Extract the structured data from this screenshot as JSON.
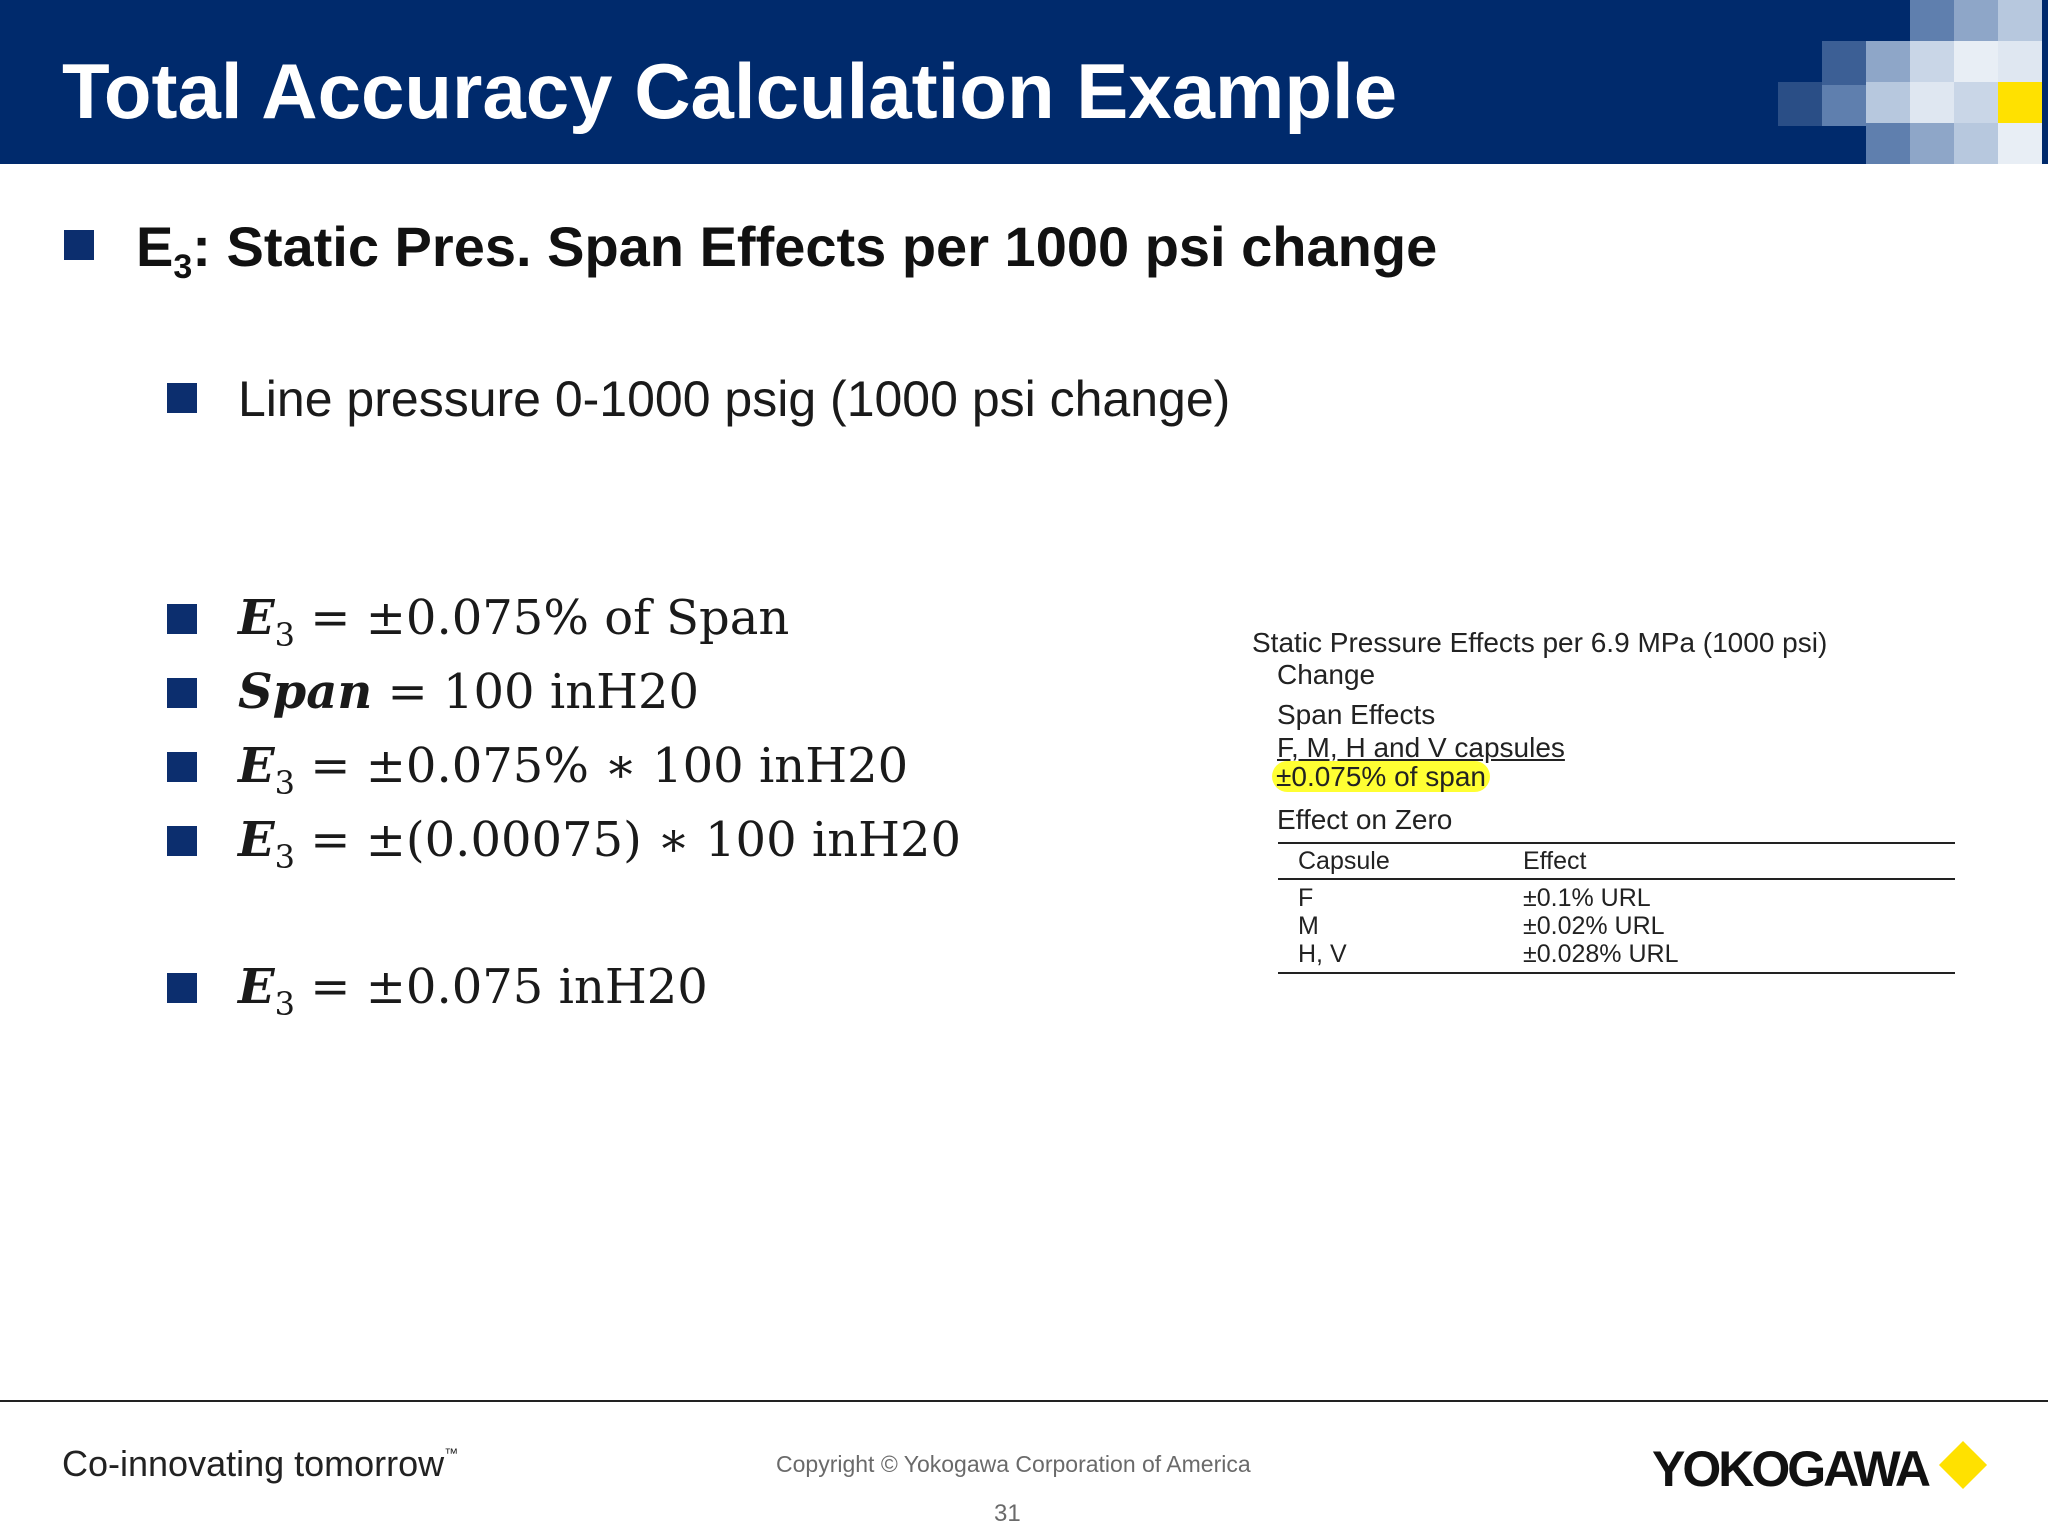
{
  "slide": {
    "title": "Total Accuracy Calculation Example",
    "heading": {
      "prefix": "E",
      "sub": "3",
      "text": ": Static Pres. Span Effects per 1000 psi change"
    },
    "line_pressure": "Line pressure 0-1000 psig (1000 psi change)",
    "equations": [
      {
        "lhs": "E",
        "lhs_sub": "3",
        "rhs": "= ±0.075% of Span"
      },
      {
        "lhs": "Span",
        "lhs_sub": "",
        "rhs": "= 100 inH20"
      },
      {
        "lhs": "E",
        "lhs_sub": "3",
        "rhs": "= ±0.075%  ∗ 100 inH20"
      },
      {
        "lhs": "E",
        "lhs_sub": "3",
        "rhs": "= ±(0.00075) ∗ 100 inH20"
      },
      {
        "lhs": "E",
        "lhs_sub": "3",
        "rhs": "= ±0.075 inH20"
      }
    ]
  },
  "spec_excerpt": {
    "title": "Static Pressure Effects per 6.9 MPa (1000 psi)",
    "title_cont": "Change",
    "span_effects": "Span Effects",
    "capsules": "F, M, H and V capsules",
    "highlight": "±0.075% of span",
    "effect_on_zero": "Effect on Zero",
    "table": {
      "headers": [
        "Capsule",
        "Effect"
      ],
      "rows": [
        [
          "F",
          "±0.1% URL"
        ],
        [
          "M",
          "±0.02% URL"
        ],
        [
          "H, V",
          "±0.028% URL"
        ]
      ]
    }
  },
  "footer": {
    "tagline": "Co-innovating tomorrow",
    "tm": "™",
    "copyright": "Copyright © Yokogawa Corporation of America",
    "page_number": "31",
    "logo": "YOKOGAWA"
  },
  "colors": {
    "title_bar": "#002a6c",
    "bullet": "#0c2e6e",
    "highlight": "#ffff33",
    "logo_diamond": "#ffe100"
  }
}
